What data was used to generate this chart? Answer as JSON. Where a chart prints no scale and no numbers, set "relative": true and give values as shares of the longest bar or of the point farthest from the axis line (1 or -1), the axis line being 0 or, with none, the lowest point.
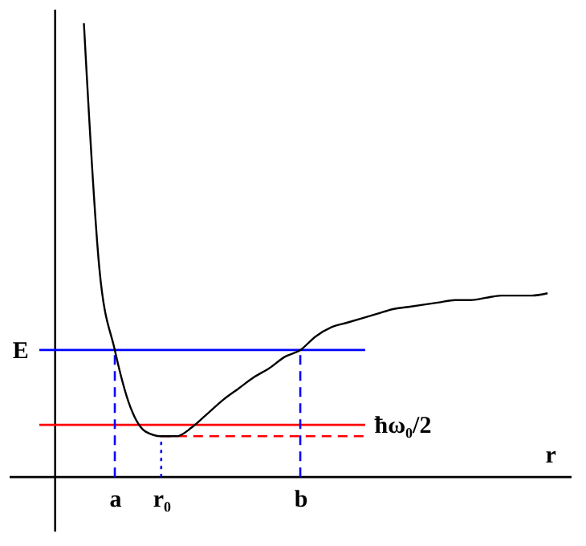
{
  "chart_data": {
    "type": "line",
    "relative": true,
    "xlabel": "r",
    "grid": false,
    "marker": "none",
    "line_style": "solid",
    "tick_labels": "x",
    "categories": [
      null,
      null,
      "a",
      null,
      null,
      "r₀",
      null,
      null,
      null,
      null,
      null,
      null,
      null,
      null,
      "b",
      null,
      null,
      null,
      null,
      null,
      null,
      null,
      null,
      null,
      null,
      null,
      null,
      null,
      null,
      null,
      null
    ],
    "series": [
      {
        "color": "#000000",
        "values": [
          1,
          0.46,
          0.28,
          0.155,
          0.1,
          0.09,
          0.09,
          0.11,
          0.14,
          0.17,
          0.195,
          0.22,
          0.24,
          0.265,
          0.28,
          0.31,
          0.33,
          0.34,
          0.35,
          0.36,
          0.37,
          0.375,
          0.38,
          0.385,
          0.39,
          0.39,
          0.395,
          0.4,
          0.4,
          0.4,
          0.405
        ]
      }
    ],
    "ref_lines": [
      {
        "axis": "y",
        "value": 0.28,
        "label": "E",
        "color": "#0000ff",
        "line_style": "solid"
      },
      {
        "axis": "y",
        "value": 0.115,
        "label": "ħω₀/2",
        "color": "#ff0000",
        "line_style": "solid"
      },
      {
        "axis": "y",
        "value": 0.09,
        "label": null,
        "color": "#ff0000",
        "line_style": "dashed"
      },
      {
        "axis": "x",
        "value": "a",
        "label": null,
        "color": "#0000ff",
        "line_style": "dashed"
      },
      {
        "axis": "x",
        "value": "r₀",
        "label": null,
        "color": "#0000ff",
        "line_style": "dotted"
      },
      {
        "axis": "x",
        "value": "b",
        "label": null,
        "color": "#0000ff",
        "line_style": "dashed"
      }
    ]
  }
}
